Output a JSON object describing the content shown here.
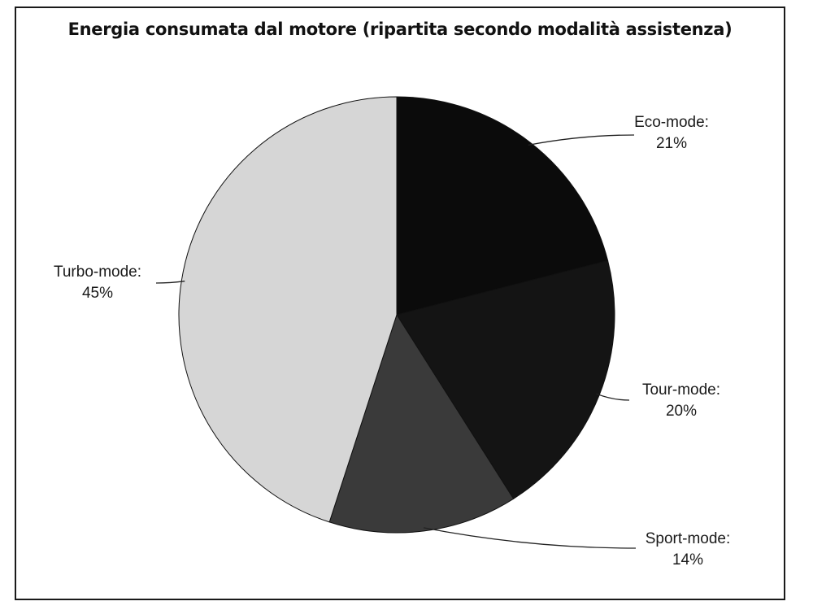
{
  "chart_data": {
    "type": "pie",
    "title": "Energia consumata dal motore (ripartita secondo modalità assistenza)",
    "slices": [
      {
        "name": "Eco-mode",
        "label": "Eco-mode:",
        "value": 21,
        "value_label": "21%",
        "color": "#0b0b0b"
      },
      {
        "name": "Tour-mode",
        "label": "Tour-mode:",
        "value": 20,
        "value_label": "20%",
        "color": "#141414"
      },
      {
        "name": "Sport-mode",
        "label": "Sport-mode:",
        "value": 14,
        "value_label": "14%",
        "color": "#3a3a3a"
      },
      {
        "name": "Turbo-mode",
        "label": "Turbo-mode:",
        "value": 45,
        "value_label": "45%",
        "color": "#d6d6d6"
      }
    ],
    "start_angle_deg": 0,
    "direction": "clockwise",
    "legend": "none",
    "data_labels": "outside with leader lines"
  }
}
